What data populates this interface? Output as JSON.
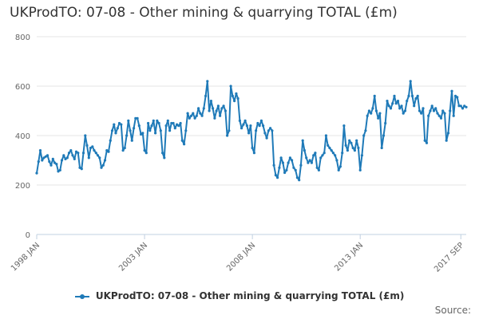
{
  "chart_data": {
    "type": "line",
    "title": "UKProdTO: 07-08 - Other mining & quarrying TOTAL (£m)",
    "xlabel": "",
    "ylabel": "",
    "ylim": [
      0,
      800
    ],
    "yticks": [
      0,
      200,
      400,
      600,
      800
    ],
    "x_start": "1998 JAN",
    "x_end": "2017 SEP",
    "x_ticks": [
      {
        "label": "1998 JAN",
        "index": 0
      },
      {
        "label": "2003 JAN",
        "index": 60
      },
      {
        "label": "2008 JAN",
        "index": 120
      },
      {
        "label": "2013 JAN",
        "index": 180
      },
      {
        "label": "2017 SEP",
        "index": 236
      }
    ],
    "grid": true,
    "legend_position": "bottom-center",
    "series": [
      {
        "name": "UKProdTO: 07-08 - Other mining & quarrying TOTAL (£m)",
        "color": "#1f7ab8",
        "values": [
          248,
          295,
          340,
          300,
          310,
          315,
          320,
          295,
          280,
          305,
          290,
          285,
          255,
          260,
          300,
          320,
          305,
          310,
          330,
          340,
          320,
          305,
          335,
          330,
          270,
          265,
          330,
          400,
          360,
          310,
          350,
          355,
          340,
          330,
          320,
          310,
          270,
          280,
          300,
          340,
          335,
          380,
          420,
          445,
          410,
          430,
          450,
          445,
          340,
          350,
          400,
          460,
          420,
          380,
          430,
          470,
          470,
          440,
          405,
          410,
          340,
          330,
          450,
          420,
          440,
          460,
          410,
          460,
          450,
          420,
          330,
          310,
          440,
          460,
          420,
          450,
          450,
          430,
          445,
          440,
          450,
          380,
          365,
          420,
          490,
          470,
          480,
          490,
          470,
          480,
          510,
          490,
          480,
          510,
          560,
          620,
          500,
          540,
          510,
          470,
          500,
          520,
          480,
          510,
          520,
          500,
          400,
          420,
          600,
          560,
          540,
          570,
          550,
          460,
          430,
          445,
          460,
          440,
          410,
          440,
          350,
          330,
          420,
          450,
          440,
          460,
          440,
          410,
          390,
          420,
          430,
          420,
          280,
          240,
          230,
          270,
          310,
          290,
          250,
          260,
          290,
          310,
          300,
          270,
          260,
          230,
          220,
          280,
          380,
          340,
          310,
          290,
          300,
          290,
          320,
          330,
          270,
          260,
          310,
          320,
          330,
          400,
          360,
          350,
          340,
          330,
          320,
          300,
          260,
          275,
          330,
          440,
          360,
          340,
          380,
          370,
          350,
          340,
          380,
          350,
          260,
          320,
          400,
          420,
          480,
          500,
          490,
          510,
          560,
          500,
          470,
          490,
          350,
          400,
          450,
          540,
          520,
          510,
          530,
          560,
          530,
          540,
          510,
          520,
          490,
          500,
          540,
          560,
          620,
          560,
          520,
          550,
          560,
          500,
          490,
          510,
          380,
          370,
          480,
          500,
          520,
          500,
          510,
          490,
          480,
          470,
          500,
          490,
          380,
          410,
          500,
          580,
          480,
          560,
          555,
          520,
          520,
          510,
          520,
          515
        ]
      }
    ]
  },
  "source_label": "Source:"
}
